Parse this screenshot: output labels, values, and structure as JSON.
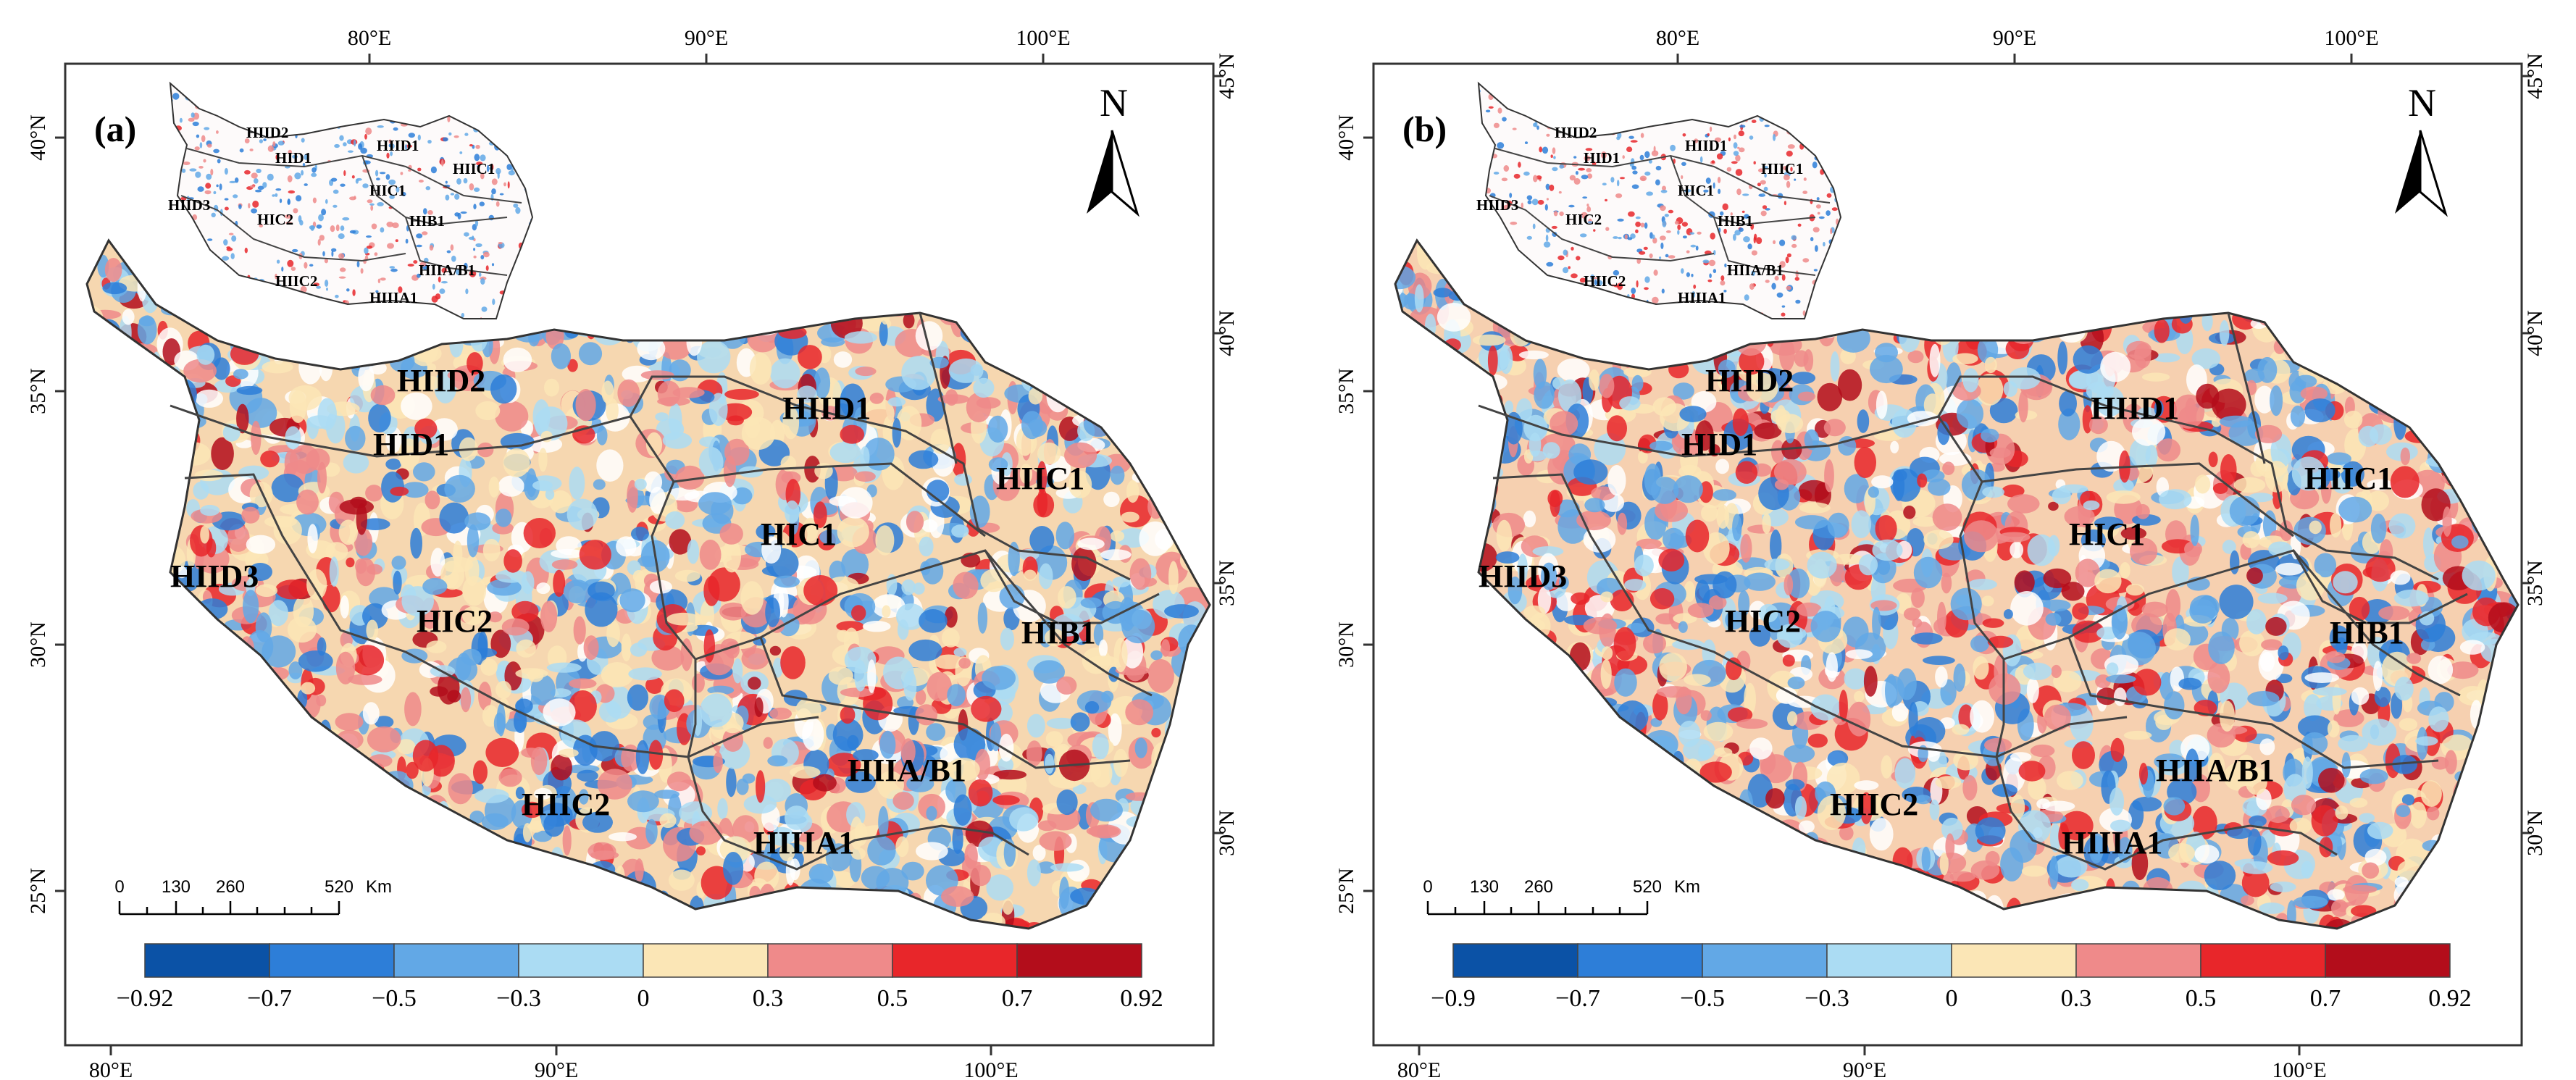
{
  "panels": [
    {
      "label": "(a)",
      "north": "N",
      "top_lon_labels": [
        "80°E",
        "90°E",
        "100°E"
      ],
      "bottom_lon_labels": [
        "80°E",
        "90°E",
        "100°E"
      ],
      "left_lat_labels": [
        "40°N",
        "35°N",
        "30°N",
        "25°N"
      ],
      "right_lat_labels": [
        "45°N",
        "40°N",
        "35°N",
        "30°N"
      ],
      "scalebar": {
        "ticks": [
          "0",
          "130",
          "260",
          "520"
        ],
        "unit": "Km"
      },
      "legend": {
        "colors": [
          "#0b52a6",
          "#2d7ed8",
          "#62a8e6",
          "#abdcf3",
          "#fbe6b6",
          "#ef8a8a",
          "#e8262a",
          "#b30d1b"
        ],
        "breaks": [
          "−0.92",
          "−0.7",
          "−0.5",
          "−0.3",
          "0",
          "0.3",
          "0.5",
          "0.7",
          "0.92"
        ]
      },
      "regions": [
        "HIID2",
        "HID1",
        "HIID1",
        "HIIC1",
        "HIID3",
        "HIC1",
        "HIC2",
        "HIB1",
        "HIIA/B1",
        "HIIC2",
        "HIIIA1"
      ],
      "inset_regions": [
        "HIID2",
        "HID1",
        "HIID1",
        "HIIC1",
        "HIID3",
        "HIC1",
        "HIC2",
        "HIB1",
        "HIIA/B1",
        "HIIC2",
        "HIIIA1"
      ]
    },
    {
      "label": "(b)",
      "north": "N",
      "top_lon_labels": [
        "80°E",
        "90°E",
        "100°E"
      ],
      "bottom_lon_labels": [
        "80°E",
        "90°E",
        "100°E"
      ],
      "left_lat_labels": [
        "40°N",
        "35°N",
        "30°N",
        "25°N"
      ],
      "right_lat_labels": [
        "45°N",
        "40°N",
        "35°N",
        "30°N"
      ],
      "scalebar": {
        "ticks": [
          "0",
          "130",
          "260",
          "520"
        ],
        "unit": "Km"
      },
      "legend": {
        "colors": [
          "#0b52a6",
          "#2d7ed8",
          "#62a8e6",
          "#abdcf3",
          "#fbe6b6",
          "#ef8a8a",
          "#e8262a",
          "#b30d1b"
        ],
        "breaks": [
          "−0.9",
          "−0.7",
          "−0.5",
          "−0.3",
          "0",
          "0.3",
          "0.5",
          "0.7",
          "0.92"
        ]
      },
      "regions": [
        "HIID2",
        "HID1",
        "HIID1",
        "HIIC1",
        "HIID3",
        "HIC1",
        "HIC2",
        "HIB1",
        "HIIA/B1",
        "HIIC2",
        "HIIIA1"
      ],
      "inset_regions": [
        "HIID2",
        "HID1",
        "HIID1",
        "HIIC1",
        "HIID3",
        "HIC1",
        "HIC2",
        "HIB1",
        "HIIA/B1",
        "HIIC2",
        "HIIIA1"
      ]
    }
  ]
}
